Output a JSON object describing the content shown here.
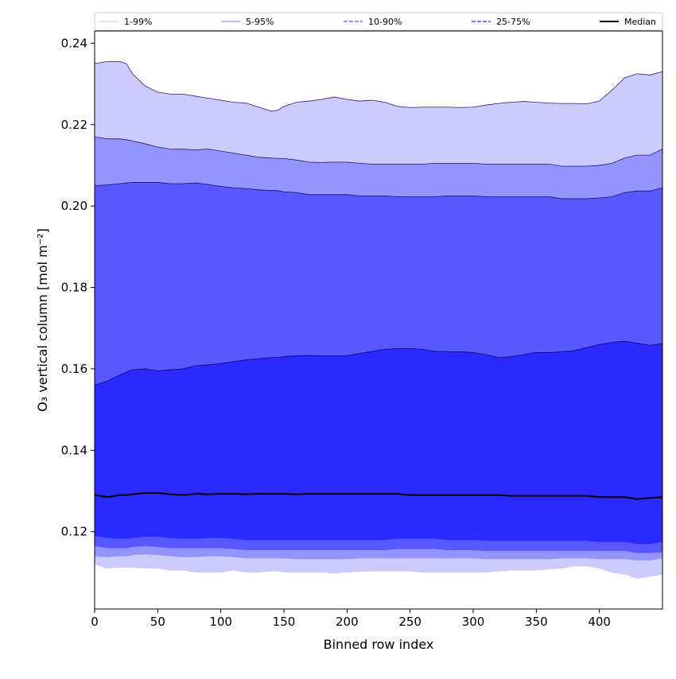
{
  "chart_data": {
    "type": "area",
    "xlabel": "Binned row index",
    "ylabel": "O₃ vertical column [mol m⁻²]",
    "xlim": [
      0,
      450
    ],
    "ylim": [
      0.101,
      0.243
    ],
    "x_ticks": [
      0,
      50,
      100,
      150,
      200,
      250,
      300,
      350,
      400
    ],
    "y_ticks": [
      0.12,
      0.14,
      0.16,
      0.18,
      0.2,
      0.22,
      0.24
    ],
    "y_tick_labels": [
      "0.12",
      "0.14",
      "0.16",
      "0.18",
      "0.20",
      "0.22",
      "0.24"
    ],
    "grid": false,
    "legend_position": "top",
    "x": [
      0,
      10,
      20,
      25,
      30,
      40,
      50,
      60,
      70,
      80,
      90,
      100,
      110,
      120,
      130,
      140,
      145,
      150,
      160,
      170,
      180,
      190,
      200,
      210,
      220,
      230,
      240,
      250,
      260,
      270,
      280,
      290,
      300,
      310,
      320,
      330,
      340,
      350,
      360,
      370,
      380,
      390,
      400,
      410,
      420,
      430,
      440,
      450
    ],
    "bands": [
      {
        "name": "1-99%",
        "color": "#cccbfc",
        "lower": [
          0.112,
          0.111,
          0.1112,
          0.1112,
          0.1112,
          0.111,
          0.111,
          0.1105,
          0.1105,
          0.11,
          0.11,
          0.11,
          0.1105,
          0.11,
          0.11,
          0.1103,
          0.1103,
          0.11,
          0.11,
          0.11,
          0.11,
          0.1098,
          0.11,
          0.1102,
          0.1103,
          0.1103,
          0.1103,
          0.1103,
          0.11,
          0.11,
          0.11,
          0.11,
          0.11,
          0.11,
          0.1103,
          0.1105,
          0.1105,
          0.1105,
          0.1108,
          0.111,
          0.1115,
          0.1115,
          0.111,
          0.11,
          0.1095,
          0.1085,
          0.109,
          0.1095
        ],
        "upper": [
          0.235,
          0.2355,
          0.2355,
          0.235,
          0.2325,
          0.2295,
          0.228,
          0.2275,
          0.2275,
          0.227,
          0.2265,
          0.226,
          0.2255,
          0.2253,
          0.2243,
          0.2233,
          0.2235,
          0.2245,
          0.2255,
          0.2258,
          0.2262,
          0.2268,
          0.2262,
          0.2258,
          0.226,
          0.2255,
          0.2245,
          0.2242,
          0.2243,
          0.2243,
          0.2243,
          0.2242,
          0.2243,
          0.2248,
          0.2252,
          0.2255,
          0.2257,
          0.2255,
          0.2253,
          0.2252,
          0.2252,
          0.2251,
          0.2258,
          0.2285,
          0.2315,
          0.2325,
          0.2322,
          0.233
        ]
      },
      {
        "name": "5-95%",
        "color": "#9495fc",
        "lower": [
          0.114,
          0.1138,
          0.114,
          0.114,
          0.1143,
          0.1145,
          0.1143,
          0.114,
          0.1138,
          0.1138,
          0.114,
          0.114,
          0.1138,
          0.1135,
          0.1135,
          0.1135,
          0.1135,
          0.1135,
          0.1133,
          0.1133,
          0.1133,
          0.1133,
          0.1133,
          0.1135,
          0.1135,
          0.1135,
          0.1135,
          0.1135,
          0.1135,
          0.1135,
          0.1135,
          0.1135,
          0.1135,
          0.1133,
          0.1133,
          0.1133,
          0.1133,
          0.1133,
          0.1133,
          0.1135,
          0.1135,
          0.1135,
          0.1133,
          0.1133,
          0.1133,
          0.113,
          0.113,
          0.1135
        ],
        "upper": [
          0.217,
          0.2165,
          0.2165,
          0.2163,
          0.216,
          0.2153,
          0.2145,
          0.214,
          0.214,
          0.2138,
          0.214,
          0.2135,
          0.213,
          0.2125,
          0.212,
          0.2118,
          0.2117,
          0.2117,
          0.2113,
          0.2108,
          0.2107,
          0.2108,
          0.2108,
          0.2105,
          0.2103,
          0.2103,
          0.2103,
          0.2103,
          0.2103,
          0.2105,
          0.2105,
          0.2105,
          0.2105,
          0.2103,
          0.2103,
          0.2103,
          0.2103,
          0.2103,
          0.2103,
          0.2098,
          0.2098,
          0.2098,
          0.21,
          0.2105,
          0.2118,
          0.2125,
          0.2125,
          0.214
        ]
      },
      {
        "name": "10-90%",
        "color": "#5858fe",
        "lower": [
          0.1165,
          0.116,
          0.116,
          0.116,
          0.1163,
          0.1165,
          0.1163,
          0.116,
          0.116,
          0.116,
          0.116,
          0.116,
          0.1158,
          0.1155,
          0.1155,
          0.1155,
          0.1155,
          0.1155,
          0.1155,
          0.1155,
          0.1155,
          0.1155,
          0.1155,
          0.1155,
          0.1155,
          0.1155,
          0.1158,
          0.1158,
          0.1158,
          0.1158,
          0.1155,
          0.1155,
          0.1155,
          0.1153,
          0.1153,
          0.1153,
          0.1153,
          0.1153,
          0.1153,
          0.1153,
          0.1153,
          0.1153,
          0.1153,
          0.1153,
          0.1153,
          0.1148,
          0.1148,
          0.115
        ],
        "upper": [
          0.205,
          0.2052,
          0.2055,
          0.2057,
          0.2058,
          0.2058,
          0.2058,
          0.2055,
          0.2055,
          0.2057,
          0.2053,
          0.2048,
          0.2045,
          0.2043,
          0.204,
          0.2038,
          0.2038,
          0.2035,
          0.2033,
          0.2028,
          0.2028,
          0.2028,
          0.2028,
          0.2025,
          0.2025,
          0.2025,
          0.2023,
          0.2023,
          0.2023,
          0.2023,
          0.2025,
          0.2025,
          0.2025,
          0.2023,
          0.2023,
          0.2023,
          0.2023,
          0.2023,
          0.2023,
          0.2018,
          0.2018,
          0.2018,
          0.202,
          0.2023,
          0.2033,
          0.2037,
          0.2037,
          0.2045
        ]
      },
      {
        "name": "25-75%",
        "color": "#2a29fe",
        "lower": [
          0.119,
          0.1185,
          0.1183,
          0.1183,
          0.1185,
          0.1188,
          0.1188,
          0.1185,
          0.1183,
          0.1183,
          0.1185,
          0.1185,
          0.1183,
          0.118,
          0.118,
          0.118,
          0.118,
          0.118,
          0.118,
          0.118,
          0.118,
          0.118,
          0.118,
          0.118,
          0.118,
          0.118,
          0.1183,
          0.1183,
          0.1183,
          0.1183,
          0.118,
          0.118,
          0.118,
          0.1178,
          0.1178,
          0.1178,
          0.1178,
          0.1178,
          0.1178,
          0.1178,
          0.1178,
          0.1178,
          0.1175,
          0.1175,
          0.1175,
          0.117,
          0.117,
          0.1175
        ],
        "upper": [
          0.156,
          0.157,
          0.1585,
          0.1592,
          0.1598,
          0.16,
          0.1595,
          0.1598,
          0.16,
          0.1608,
          0.161,
          0.1613,
          0.1618,
          0.1622,
          0.1625,
          0.1628,
          0.1628,
          0.163,
          0.1632,
          0.1633,
          0.1632,
          0.1632,
          0.1632,
          0.1638,
          0.1643,
          0.1648,
          0.165,
          0.165,
          0.1648,
          0.1643,
          0.1642,
          0.1642,
          0.164,
          0.1635,
          0.1628,
          0.163,
          0.1635,
          0.164,
          0.164,
          0.1642,
          0.1645,
          0.1652,
          0.166,
          0.1665,
          0.1668,
          0.1663,
          0.1658,
          0.1662
        ]
      }
    ],
    "series": [
      {
        "name": "Median",
        "color": "#000000",
        "values": [
          0.129,
          0.1285,
          0.129,
          0.129,
          0.1292,
          0.1295,
          0.1295,
          0.1292,
          0.129,
          0.1293,
          0.1292,
          0.1293,
          0.1293,
          0.1292,
          0.1293,
          0.1293,
          0.1293,
          0.1293,
          0.1292,
          0.1293,
          0.1293,
          0.1293,
          0.1293,
          0.1293,
          0.1293,
          0.1293,
          0.1293,
          0.129,
          0.129,
          0.129,
          0.129,
          0.129,
          0.129,
          0.129,
          0.129,
          0.1288,
          0.1288,
          0.1288,
          0.1288,
          0.1288,
          0.1288,
          0.1288,
          0.1285,
          0.1285,
          0.1285,
          0.128,
          0.1283,
          0.1285
        ]
      }
    ],
    "legend": [
      {
        "label": "1-99%",
        "color": "#cccbfc",
        "style": "solid"
      },
      {
        "label": "5-95%",
        "color": "#9495fc",
        "style": "solid"
      },
      {
        "label": "10-90%",
        "color": "#5858fe",
        "style": "dashed"
      },
      {
        "label": "25-75%",
        "color": "#2a29fe",
        "style": "dashed"
      },
      {
        "label": "Median",
        "color": "#000000",
        "style": "solid"
      }
    ]
  }
}
